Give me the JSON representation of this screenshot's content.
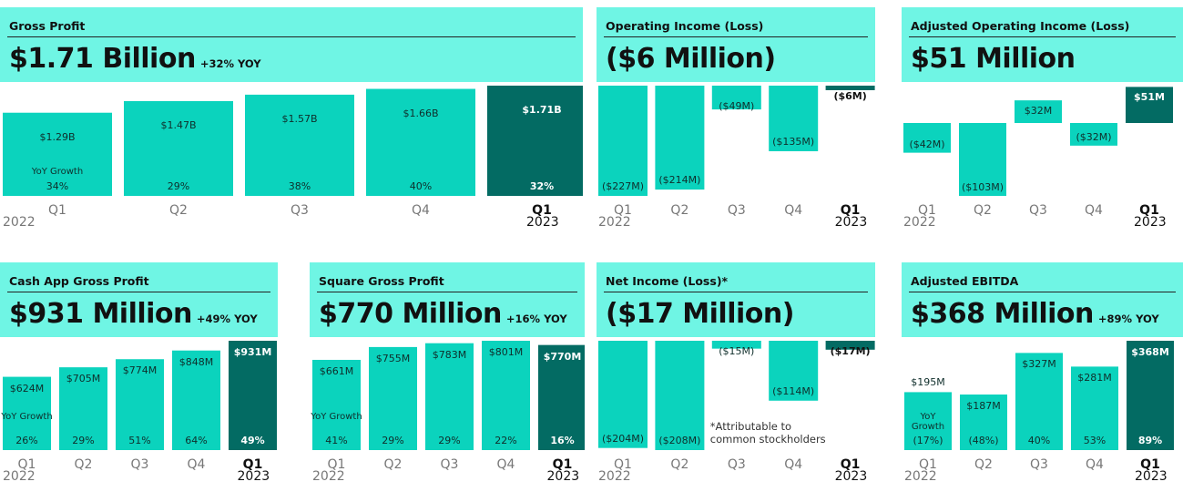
{
  "colors": {
    "header": "#6ff5e4",
    "bar": "#0bd3bd",
    "bar_current": "#036b63",
    "label_dark": "#0f2e2b",
    "label_light": "#ffffff"
  },
  "panels": [
    {
      "id": "gross-profit",
      "title": "Gross Profit",
      "headline": "$1.71 Billion",
      "yoy": "+32% YOY",
      "growth_label": "YoY Growth",
      "footnote": "",
      "chart_data": {
        "type": "bar",
        "categories": [
          "Q1",
          "Q2",
          "Q3",
          "Q4",
          "Q1"
        ],
        "years": [
          "2022",
          "2023"
        ],
        "values": [
          1.29,
          1.47,
          1.57,
          1.66,
          1.71
        ],
        "value_labels": [
          "$1.29B",
          "$1.47B",
          "$1.57B",
          "$1.66B",
          "$1.71B"
        ],
        "growth": [
          "34%",
          "29%",
          "38%",
          "40%",
          "32%"
        ]
      }
    },
    {
      "id": "operating-income",
      "title": "Operating Income (Loss)",
      "headline": "($6 Million)",
      "yoy": "",
      "growth_label": "",
      "footnote": "",
      "chart_data": {
        "type": "bar",
        "categories": [
          "Q1",
          "Q2",
          "Q3",
          "Q4",
          "Q1"
        ],
        "years": [
          "2022",
          "2023"
        ],
        "values": [
          -227,
          -214,
          -49,
          -135,
          -6
        ],
        "value_labels": [
          "($227M)",
          "($214M)",
          "($49M)",
          "($135M)",
          "($6M)"
        ],
        "growth": []
      }
    },
    {
      "id": "adjusted-operating-income",
      "title": "Adjusted Operating Income (Loss)",
      "headline": "$51 Million",
      "yoy": "",
      "growth_label": "",
      "footnote": "",
      "chart_data": {
        "type": "bar",
        "categories": [
          "Q1",
          "Q2",
          "Q3",
          "Q4",
          "Q1"
        ],
        "years": [
          "2022",
          "2023"
        ],
        "values": [
          -42,
          -103,
          32,
          -32,
          51
        ],
        "value_labels": [
          "($42M)",
          "($103M)",
          "$32M",
          "($32M)",
          "$51M"
        ],
        "growth": []
      }
    },
    {
      "id": "cash-app-gross-profit",
      "title": "Cash App Gross Profit",
      "headline": "$931 Million",
      "yoy": "+49% YOY",
      "growth_label": "YoY Growth",
      "footnote": "",
      "chart_data": {
        "type": "bar",
        "categories": [
          "Q1",
          "Q2",
          "Q3",
          "Q4",
          "Q1"
        ],
        "years": [
          "2022",
          "2023"
        ],
        "values": [
          624,
          705,
          774,
          848,
          931
        ],
        "value_labels": [
          "$624M",
          "$705M",
          "$774M",
          "$848M",
          "$931M"
        ],
        "growth": [
          "26%",
          "29%",
          "51%",
          "64%",
          "49%"
        ]
      }
    },
    {
      "id": "square-gross-profit",
      "title": "Square Gross Profit",
      "headline": "$770 Million",
      "yoy": "+16% YOY",
      "growth_label": "YoY Growth",
      "footnote": "",
      "chart_data": {
        "type": "bar",
        "categories": [
          "Q1",
          "Q2",
          "Q3",
          "Q4",
          "Q1"
        ],
        "years": [
          "2022",
          "2023"
        ],
        "values": [
          661,
          755,
          783,
          801,
          770
        ],
        "value_labels": [
          "$661M",
          "$755M",
          "$783M",
          "$801M",
          "$770M"
        ],
        "growth": [
          "41%",
          "29%",
          "29%",
          "22%",
          "16%"
        ]
      }
    },
    {
      "id": "net-income",
      "title": "Net Income (Loss)*",
      "headline": "($17 Million)",
      "yoy": "",
      "growth_label": "",
      "footnote": "*Attributable to common stockholders",
      "chart_data": {
        "type": "bar",
        "categories": [
          "Q1",
          "Q2",
          "Q3",
          "Q4",
          "Q1"
        ],
        "years": [
          "2022",
          "2023"
        ],
        "values": [
          -204,
          -208,
          -15,
          -114,
          -17
        ],
        "value_labels": [
          "($204M)",
          "($208M)",
          "($15M)",
          "($114M)",
          "($17M)"
        ],
        "growth": []
      }
    },
    {
      "id": "adjusted-ebitda",
      "title": "Adjusted EBITDA",
      "headline": "$368 Million",
      "yoy": "+89% YOY",
      "growth_label": "YoY Growth",
      "footnote": "",
      "chart_data": {
        "type": "bar",
        "categories": [
          "Q1",
          "Q2",
          "Q3",
          "Q4",
          "Q1"
        ],
        "years": [
          "2022",
          "2023"
        ],
        "values": [
          195,
          187,
          327,
          281,
          368
        ],
        "value_labels": [
          "$195M",
          "$187M",
          "$327M",
          "$281M",
          "$368M"
        ],
        "growth": [
          "(17%)",
          "(48%)",
          "40%",
          "53%",
          "89%"
        ]
      }
    }
  ]
}
